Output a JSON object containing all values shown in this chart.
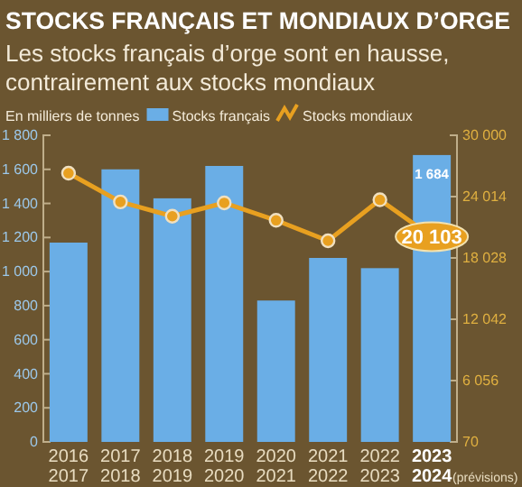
{
  "chart_data": {
    "type": "bar",
    "title": "STOCKS FRANÇAIS ET MONDIAUX D’ORGE",
    "subtitle": "Les stocks français d’orge sont en hausse, contrairement aux stocks mondiaux",
    "ylabel": "En milliers de tonnes",
    "categories": [
      "2016\n2017",
      "2017\n2018",
      "2018\n2019",
      "2019\n2020",
      "2020\n2021",
      "2021\n2022",
      "2022\n2023",
      "2023\n2024"
    ],
    "series": [
      {
        "name": "Stocks français",
        "color": "#6aaee6",
        "values": [
          1170,
          1600,
          1430,
          1620,
          830,
          1080,
          1020,
          1684
        ],
        "value_labels": [
          null,
          null,
          null,
          null,
          null,
          null,
          null,
          "1 684"
        ]
      },
      {
        "name": "Stocks mondiaux",
        "type": "line",
        "axis": "y2",
        "color": "#e8a020",
        "values": [
          26300,
          23500,
          22100,
          23400,
          21700,
          19700,
          23700,
          20103
        ],
        "value_labels": [
          null,
          null,
          null,
          null,
          null,
          null,
          null,
          "20 103"
        ]
      }
    ],
    "ylim": [
      0,
      1800
    ],
    "yticks": [
      {
        "value": 0,
        "label": "0"
      },
      {
        "value": 200,
        "label": "200"
      },
      {
        "value": 400,
        "label": "400"
      },
      {
        "value": 600,
        "label": "600"
      },
      {
        "value": 800,
        "label": "800"
      },
      {
        "value": 1000,
        "label": "1 000"
      },
      {
        "value": 1200,
        "label": "1 200"
      },
      {
        "value": 1400,
        "label": "1 400"
      },
      {
        "value": 1600,
        "label": "1 600"
      },
      {
        "value": 1800,
        "label": "1 800"
      }
    ],
    "y2lim": [
      70,
      30000
    ],
    "y2ticks": [
      {
        "value": 70,
        "label": "70"
      },
      {
        "value": 6056,
        "label": "6 056"
      },
      {
        "value": 12042,
        "label": "12 042"
      },
      {
        "value": 18028,
        "label": "18 028"
      },
      {
        "value": 24014,
        "label": "24 014"
      },
      {
        "value": 30000,
        "label": "30 000"
      }
    ],
    "annotations": [
      "(prévisions)"
    ],
    "legend": "top",
    "marker": "circle",
    "grid": false
  }
}
